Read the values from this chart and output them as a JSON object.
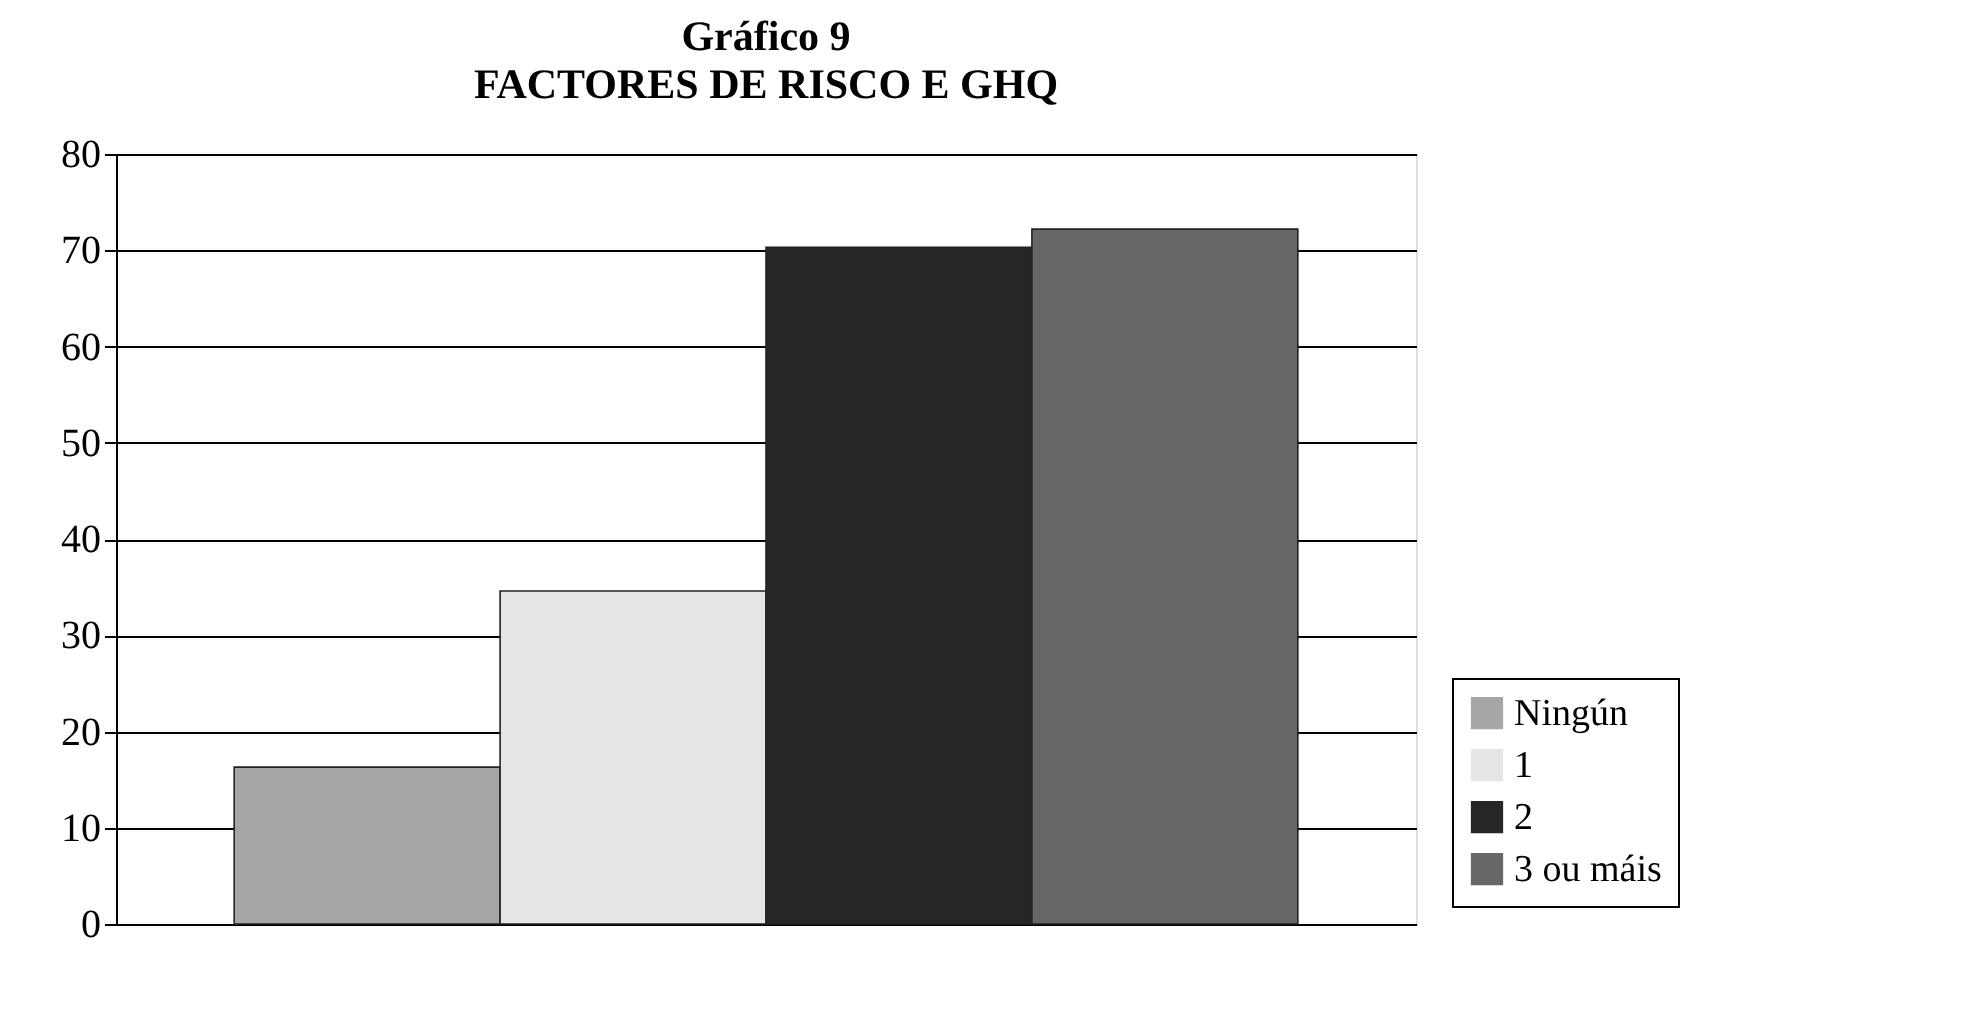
{
  "chart_data": {
    "type": "bar",
    "title": "Gráfico 9",
    "subtitle": "FACTORES DE RISCO E GHQ",
    "categories": [
      null
    ],
    "series": [
      {
        "name": "Ningún",
        "color": "#a6a6a6",
        "values": [
          16.3
        ]
      },
      {
        "name": "1",
        "color": "#e5e5e5",
        "values": [
          34.6
        ]
      },
      {
        "name": "2",
        "color": "#262626",
        "values": [
          70.3
        ]
      },
      {
        "name": "3 ou máis",
        "color": "#666666",
        "values": [
          72.2
        ]
      }
    ],
    "ylim": [
      0,
      80
    ],
    "yticks": [
      0,
      10,
      20,
      30,
      40,
      50,
      60,
      70,
      80
    ],
    "grid": "y",
    "legend": "right",
    "tick_labels": "y"
  }
}
